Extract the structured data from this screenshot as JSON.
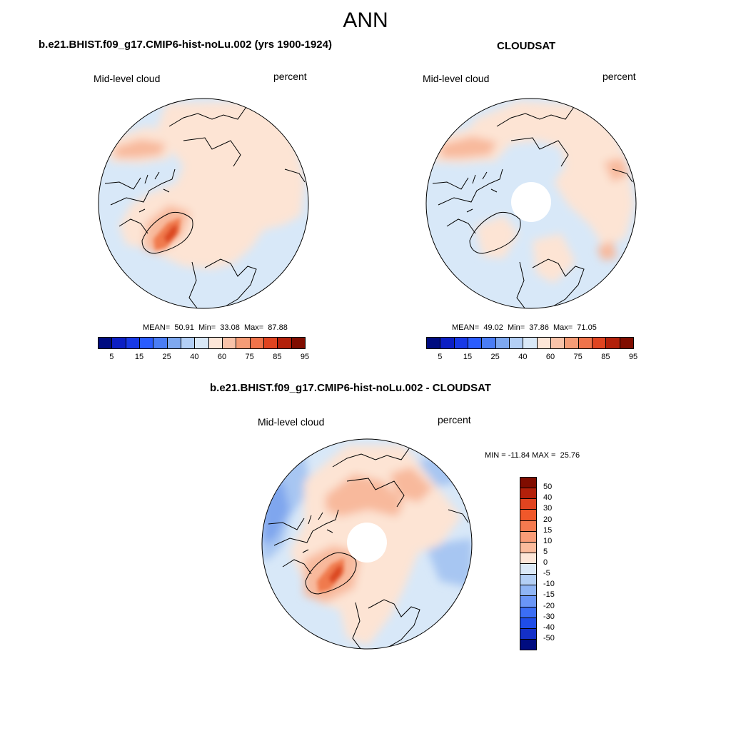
{
  "figure": {
    "title": "ANN"
  },
  "panels": {
    "model": {
      "title": "b.e21.BHIST.f09_g17.CMIP6-hist-noLu.002 (yrs 1900-1924)",
      "variable": "Mid-level cloud",
      "units": "percent",
      "stats": {
        "mean_label": "MEAN=",
        "mean": "50.91",
        "min_label": "Min=",
        "min": "33.08",
        "max_label": "Max=",
        "max": "87.88"
      }
    },
    "obs": {
      "title": "CLOUDSAT",
      "variable": "Mid-level cloud",
      "units": "percent",
      "stats": {
        "mean_label": "MEAN=",
        "mean": "49.02",
        "min_label": "Min=",
        "min": "37.86",
        "max_label": "Max=",
        "max": "71.05"
      }
    },
    "diff": {
      "title": "b.e21.BHIST.f09_g17.CMIP6-hist-noLu.002 - CLOUDSAT",
      "variable": "Mid-level cloud",
      "units": "percent",
      "stats": {
        "min_label": "MIN =",
        "min": "-11.84",
        "max_label": "MAX =",
        "max": "25.76"
      }
    }
  },
  "colorbars": {
    "abs": {
      "colors": [
        "#000c80",
        "#0c1fc4",
        "#1839e6",
        "#2a5cff",
        "#4a7df5",
        "#7ea8f0",
        "#b3cff5",
        "#d9e8f7",
        "#fde6d8",
        "#f9c3a9",
        "#f59c76",
        "#f0734a",
        "#e04420",
        "#b3200a",
        "#800d00"
      ],
      "tick_labels": [
        "5",
        "15",
        "25",
        "40",
        "60",
        "75",
        "85",
        "95"
      ]
    },
    "diff": {
      "colors": [
        "#800d00",
        "#b3200a",
        "#e04420",
        "#f0582a",
        "#f57a4f",
        "#f99c77",
        "#fbbb9c",
        "#fde6d8",
        "#dbe9f7",
        "#b3cff5",
        "#8fb5f5",
        "#6a96f7",
        "#3c6ef5",
        "#1f4de8",
        "#1430c8",
        "#000c80"
      ],
      "tick_labels": [
        "50",
        "40",
        "30",
        "20",
        "15",
        "10",
        "5",
        "0",
        "-5",
        "-10",
        "-15",
        "-20",
        "-30",
        "-40",
        "-50"
      ]
    }
  },
  "map_colors": {
    "light_blue": "#d8e8f8",
    "mid_blue": "#a7c6f2",
    "deep_blue": "#7fa6ee",
    "light_peach": "#fde4d4",
    "peach": "#f8b99c",
    "orange": "#f07a4e",
    "red": "#dc4a22"
  }
}
